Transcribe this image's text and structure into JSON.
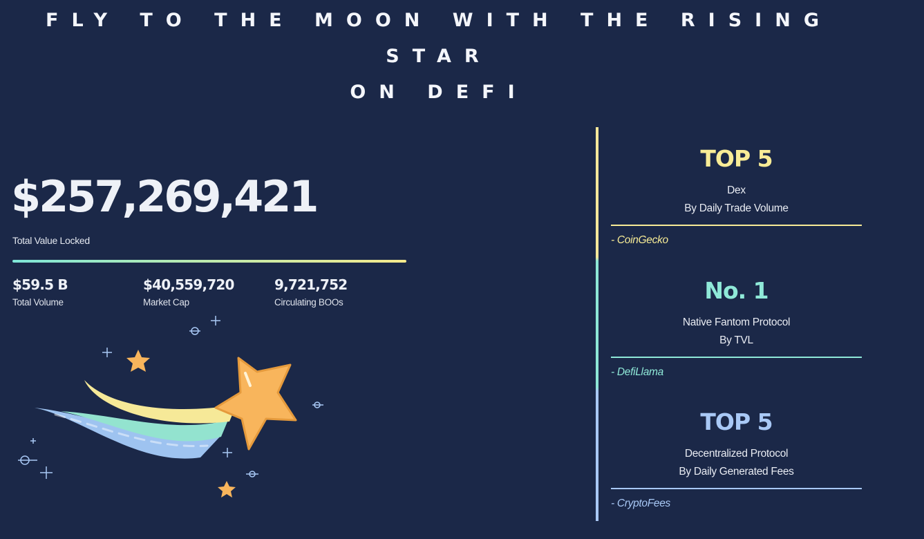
{
  "headline": {
    "line1": "FLY TO THE MOON WITH THE RISING STAR",
    "line2": "ON DEFI"
  },
  "tvl": {
    "value": "$257,269,421",
    "label": "Total Value Locked"
  },
  "stats": [
    {
      "value": "$59.5 B",
      "label": "Total Volume"
    },
    {
      "value": "$40,559,720",
      "label": "Market Cap"
    },
    {
      "value": "9,721,752",
      "label": "Circulating BOOs"
    }
  ],
  "rankings": [
    {
      "title": "TOP 5",
      "line1": "Dex",
      "line2": "By Daily Trade Volume",
      "source": "- CoinGecko",
      "color": "#f8ec96"
    },
    {
      "title": "No. 1",
      "line1": "Native Fantom Protocol",
      "line2": "By TVL",
      "source": "- DefiLlama",
      "color": "#8fe9d8"
    },
    {
      "title": "TOP 5",
      "line1": "Decentralized Protocol",
      "line2": "By Daily Generated Fees",
      "source": "- CryptoFees",
      "color": "#a9c9f6"
    }
  ],
  "colors": {
    "background": "#1b2848",
    "star": "#f8b55c"
  },
  "icons": [
    "shooting-star-illustration",
    "sparkle-icon"
  ]
}
